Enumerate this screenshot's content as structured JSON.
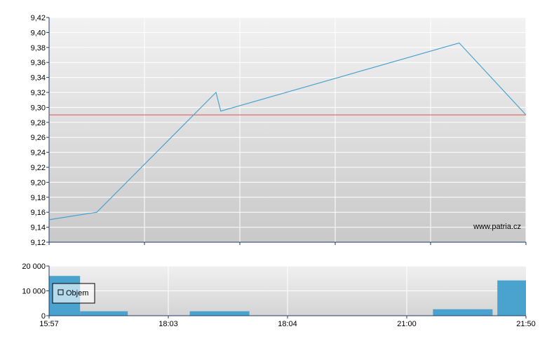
{
  "chart_data": [
    {
      "type": "line",
      "title": "",
      "xlabel": "",
      "ylabel": "",
      "ylim": [
        9.12,
        9.42
      ],
      "y_ticks": [
        "9,12",
        "9,14",
        "9,16",
        "9,18",
        "9,20",
        "9,22",
        "9,24",
        "9,26",
        "9,28",
        "9,30",
        "9,32",
        "9,34",
        "9,36",
        "9,38",
        "9,40",
        "9,42"
      ],
      "grid": true,
      "reference_line": {
        "value": 9.29,
        "color": "#d9534f"
      },
      "series": [
        {
          "color": "#4aa3cf",
          "x": [
            0.0,
            0.1,
            0.35,
            0.36,
            0.86,
            1.0
          ],
          "y": [
            9.15,
            9.16,
            9.32,
            9.295,
            9.386,
            9.29
          ]
        }
      ],
      "watermark": "www.patria.cz"
    },
    {
      "type": "bar",
      "ylim": [
        0,
        20000
      ],
      "y_ticks": [
        "0",
        "10 000",
        "20 000"
      ],
      "x_ticks": [
        "15:57",
        "18:03",
        "18:04",
        "21:00",
        "21:50"
      ],
      "legend": {
        "label": "Objem",
        "position": "left"
      },
      "color": "#4aa3cf",
      "bars": [
        {
          "start": 0.0,
          "end": 0.065,
          "value": 16000
        },
        {
          "start": 0.065,
          "end": 0.165,
          "value": 1800
        },
        {
          "start": 0.295,
          "end": 0.42,
          "value": 1800
        },
        {
          "start": 0.805,
          "end": 0.93,
          "value": 2600
        },
        {
          "start": 0.94,
          "end": 1.0,
          "value": 14200
        }
      ]
    }
  ]
}
